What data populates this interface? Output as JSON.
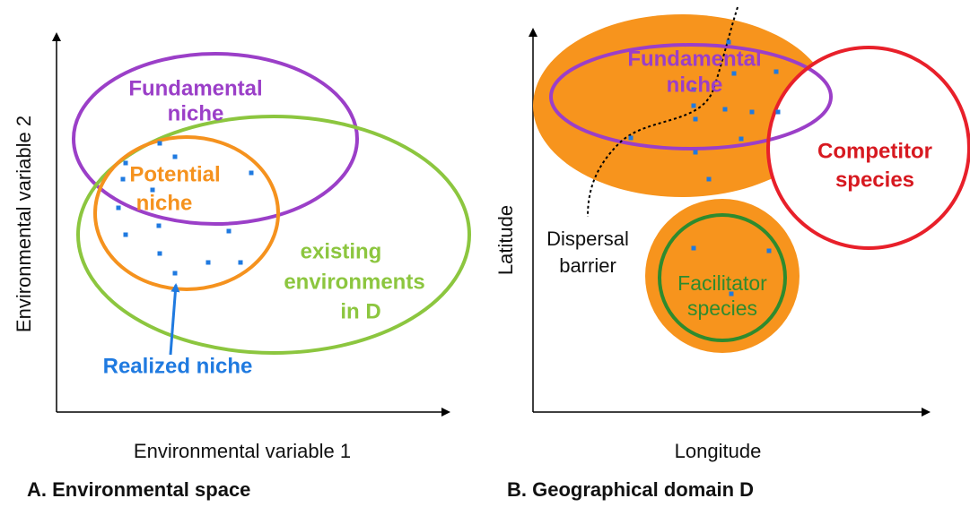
{
  "panels": [
    {
      "caption": "A. Environmental space",
      "x_axis": "Environmental variable 1",
      "y_axis": "Environmental variable 2",
      "fundamental_niche": [
        "Fundamental",
        "niche"
      ],
      "potential_niche": [
        "Potential",
        "niche"
      ],
      "existing_environments": [
        "existing",
        "environments",
        "in D"
      ],
      "realized_niche": "Realized niche"
    },
    {
      "caption": "B. Geographical domain D",
      "x_axis": "Longitude",
      "y_axis": "Latitude",
      "fundamental_niche": [
        "Fundamental",
        "niche"
      ],
      "competitor": [
        "Competitor",
        "species"
      ],
      "dispersal_barrier": [
        "Dispersal",
        "barrier"
      ],
      "facilitator": [
        "Facilitator",
        "species"
      ]
    }
  ]
}
